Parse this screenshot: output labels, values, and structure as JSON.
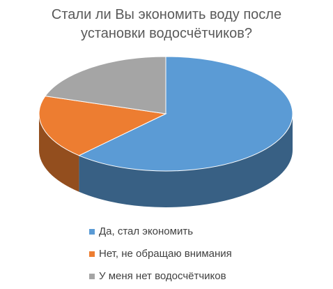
{
  "chart_data": {
    "type": "pie3d",
    "title": "Стали ли Вы экономить воду после установки водосчётчиков?",
    "categories": [
      "Да, стал экономить",
      "Нет, не обращаю внимания",
      "У меня нет водосчётчиков"
    ],
    "values": [
      62,
      18,
      20
    ],
    "colors": [
      "#5b9bd5",
      "#ed7d31",
      "#a5a5a5"
    ],
    "legend": "bottom"
  }
}
